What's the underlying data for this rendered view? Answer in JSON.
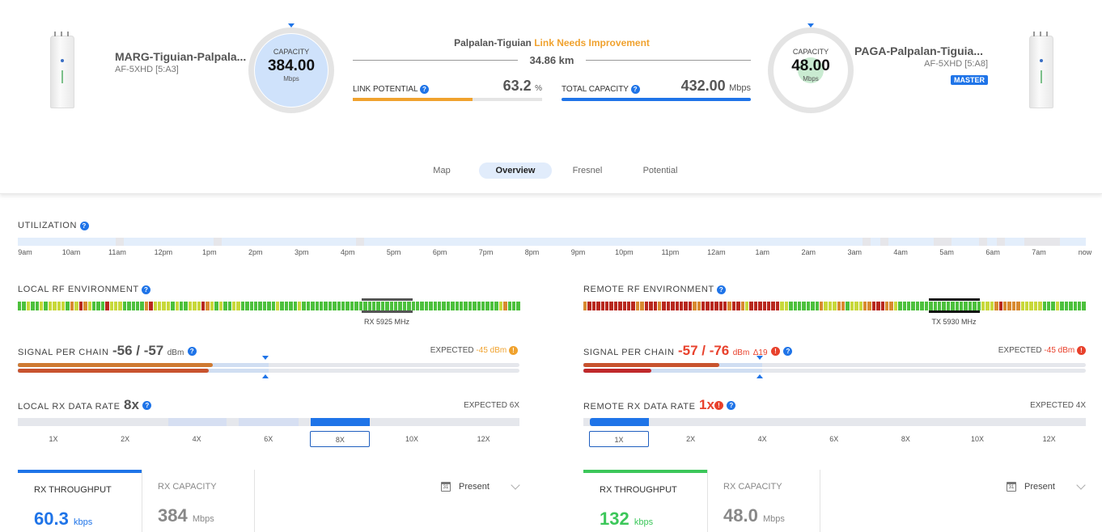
{
  "link": {
    "name": "Palpalan-Tiguian",
    "status": "Link Needs Improvement",
    "distance": "34.86 km",
    "link_potential_label": "LINK POTENTIAL",
    "link_potential_value": "63.2",
    "link_potential_unit": "%",
    "link_potential_pct": 63.2,
    "total_capacity_label": "TOTAL CAPACITY",
    "total_capacity_value": "432.00",
    "total_capacity_unit": "Mbps"
  },
  "local_device": {
    "name": "MARG-Tiguian-Palpala...",
    "model": "AF-5XHD [5:A3]",
    "capacity_label": "CAPACITY",
    "capacity_value": "384.00",
    "capacity_unit": "Mbps"
  },
  "remote_device": {
    "name": "PAGA-Palpalan-Tiguia...",
    "model": "AF-5XHD [5:A8]",
    "badge": "MASTER",
    "capacity_label": "CAPACITY",
    "capacity_value": "48.00",
    "capacity_unit": "Mbps"
  },
  "tabs": [
    {
      "label": "Map"
    },
    {
      "label": "Overview",
      "active": true
    },
    {
      "label": "Fresnel"
    },
    {
      "label": "Potential"
    }
  ],
  "utilization": {
    "label": "UTILIZATION",
    "ticks": [
      "9am",
      "10am",
      "11am",
      "12pm",
      "1pm",
      "2pm",
      "3pm",
      "4pm",
      "5pm",
      "6pm",
      "7pm",
      "8pm",
      "9pm",
      "10pm",
      "11pm",
      "12am",
      "1am",
      "2am",
      "3am",
      "4am",
      "5am",
      "6am",
      "7am",
      "now"
    ]
  },
  "local": {
    "rf_label": "LOCAL RF ENVIRONMENT",
    "rf_freq": "RX 5925 MHz",
    "rf_pattern": "ggyggygyyyygoyroygggryyygggggoryyyygyggyyyroygyggyyggggggggyggggygggggggggggggggggggggggggggggggggggggggggggggyoggg",
    "signal_label": "SIGNAL PER CHAIN",
    "signal_value": "-56 / -57",
    "signal_unit": "dBm",
    "expected_label": "EXPECTED",
    "expected_value": "-45 dBm",
    "chain_dbm": [
      -56,
      -57
    ],
    "expected_dbm": -45,
    "rate_label": "LOCAL RX DATA RATE",
    "rate_value": "8x",
    "rate_expected": "EXPECTED 6X",
    "rates": [
      "1X",
      "2X",
      "4X",
      "6X",
      "8X",
      "10X",
      "12X"
    ],
    "selected_rate": "8X",
    "rx_throughput_label": "RX THROUGHPUT",
    "rx_throughput_value": "60.3",
    "rx_throughput_unit": "kbps",
    "rx_capacity_label": "RX CAPACITY",
    "rx_capacity_value": "384",
    "rx_capacity_unit": "Mbps",
    "period": "Present",
    "calendar_day": "31"
  },
  "remote": {
    "rf_label": "REMOTE RF ENVIRONMENT",
    "rf_freq": "TX 5930 MHz",
    "rf_pattern": "orrrrrrrrrrroorrrorrrrrrroorrrrrrorroyrrrrrrryygggggggoyyyoogyyyoorrrooygggggggggggggggggggyyyorooooyyyyygggygggggg",
    "signal_label": "SIGNAL PER CHAIN",
    "signal_value": "-57 / -76",
    "signal_unit": "dBm",
    "delta": "Δ19",
    "expected_label": "EXPECTED",
    "expected_value": "-45 dBm",
    "chain_dbm": [
      -57,
      -76
    ],
    "expected_dbm": -45,
    "rate_label": "REMOTE RX DATA RATE",
    "rate_value": "1x",
    "rate_expected": "EXPECTED 4X",
    "rates": [
      "1X",
      "2X",
      "4X",
      "6X",
      "8X",
      "10X",
      "12X"
    ],
    "selected_rate": "1X",
    "rx_throughput_label": "RX THROUGHPUT",
    "rx_throughput_value": "132",
    "rx_throughput_unit": "kbps",
    "rx_capacity_label": "RX CAPACITY",
    "rx_capacity_value": "48.0",
    "rx_capacity_unit": "Mbps",
    "period": "Present",
    "calendar_day": "31"
  },
  "colors": {
    "accent": "#1f74e8",
    "warning": "#f0a22e",
    "error": "#e8412c",
    "green": "#3cc75a",
    "rf_green": "#4cc03c",
    "rf_yellow": "#c8d83a",
    "rf_orange": "#d88a30",
    "rf_red": "#b8281e"
  }
}
